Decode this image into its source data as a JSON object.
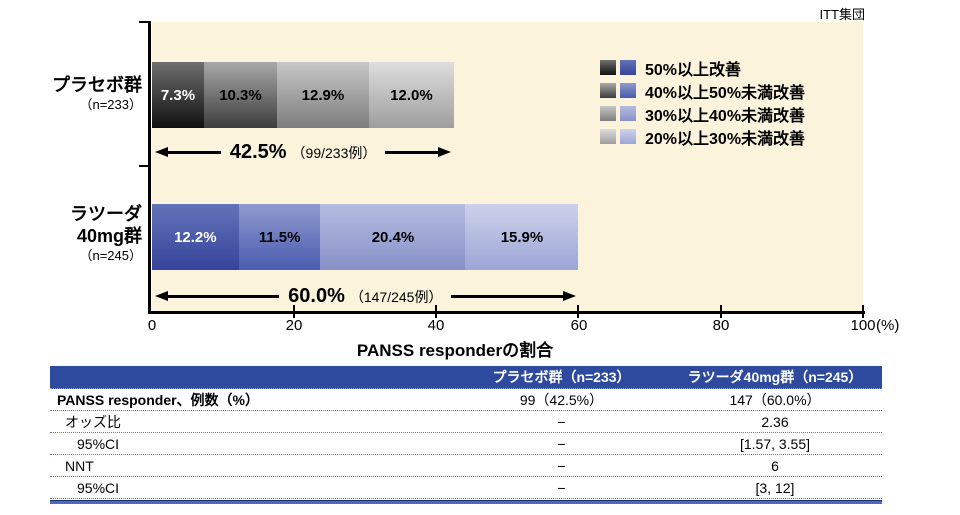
{
  "chart_data": {
    "type": "bar",
    "orientation": "horizontal",
    "stacked": true,
    "population_note": "ITT集団",
    "xlabel": "PANSS responderの割合",
    "x_unit": "(%)",
    "xlim": [
      0,
      100
    ],
    "x_ticks": [
      "0",
      "20",
      "40",
      "60",
      "80",
      "100"
    ],
    "grid": false,
    "legend_position": "top-right",
    "legend": [
      "50%以上改善",
      "40%以上50%未満改善",
      "30%以上40%未満改善",
      "20%以上30%未満改善"
    ],
    "series": [
      {
        "name": "50%以上改善",
        "values": [
          7.3,
          12.2
        ]
      },
      {
        "name": "40%以上50%未満改善",
        "values": [
          10.3,
          11.5
        ]
      },
      {
        "name": "30%以上40%未満改善",
        "values": [
          12.9,
          20.4
        ]
      },
      {
        "name": "20%以上30%未満改善",
        "values": [
          12.0,
          15.9
        ]
      }
    ],
    "groups": [
      {
        "name_lines": [
          "プラセボ群"
        ],
        "n_label": "（n=233）",
        "values": [
          7.3,
          10.3,
          12.9,
          12.0
        ],
        "labels": [
          "7.3%",
          "10.3%",
          "12.9%",
          "12.0%"
        ],
        "total_value": 42.5,
        "total_label": "42.5%",
        "total_detail": "（99/233例）"
      },
      {
        "name_lines": [
          "ラツーダ",
          "40mg群"
        ],
        "n_label": "（n=245）",
        "values": [
          12.2,
          11.5,
          20.4,
          15.9
        ],
        "labels": [
          "12.2%",
          "11.5%",
          "20.4%",
          "15.9%"
        ],
        "total_value": 60.0,
        "total_label": "60.0%",
        "total_detail": "（147/245例）"
      }
    ]
  },
  "table": {
    "headers": [
      "",
      "プラセボ群（n=233）",
      "ラツーダ40mg群（n=245）"
    ],
    "rows": [
      {
        "label": "PANSS responder、例数（%）",
        "placebo": "99（42.5%）",
        "lurasidone": "147（60.0%）"
      },
      {
        "label": "オッズ比",
        "placebo": "−",
        "lurasidone": "2.36"
      },
      {
        "label": "95%CI",
        "placebo": "−",
        "lurasidone": "[1.57, 3.55]"
      },
      {
        "label": "NNT",
        "placebo": "−",
        "lurasidone": "6"
      },
      {
        "label": "95%CI",
        "placebo": "−",
        "lurasidone": "[3, 12]"
      }
    ]
  },
  "colors": {
    "plot_bg": "#FBF3DC",
    "axis": "#000000",
    "table_header_bg": "#2E4A9E",
    "table_header_text": "#FFFFFF",
    "table_rule_dark": "#1B3375",
    "table_rule_blue": "#4E68BD",
    "gray_gradients": [
      [
        "#6F6F6F",
        "#101010"
      ],
      [
        "#A9A9A9",
        "#3C3C3C"
      ],
      [
        "#C7C7C7",
        "#7E7E7E"
      ],
      [
        "#DEDEDE",
        "#9E9E9E"
      ]
    ],
    "blue_gradients": [
      [
        "#6373B9",
        "#35449A"
      ],
      [
        "#8F9ACE",
        "#4A5CAF"
      ],
      [
        "#B5BCE0",
        "#8791C7"
      ],
      [
        "#CCD1EB",
        "#9CA6D6"
      ]
    ]
  }
}
